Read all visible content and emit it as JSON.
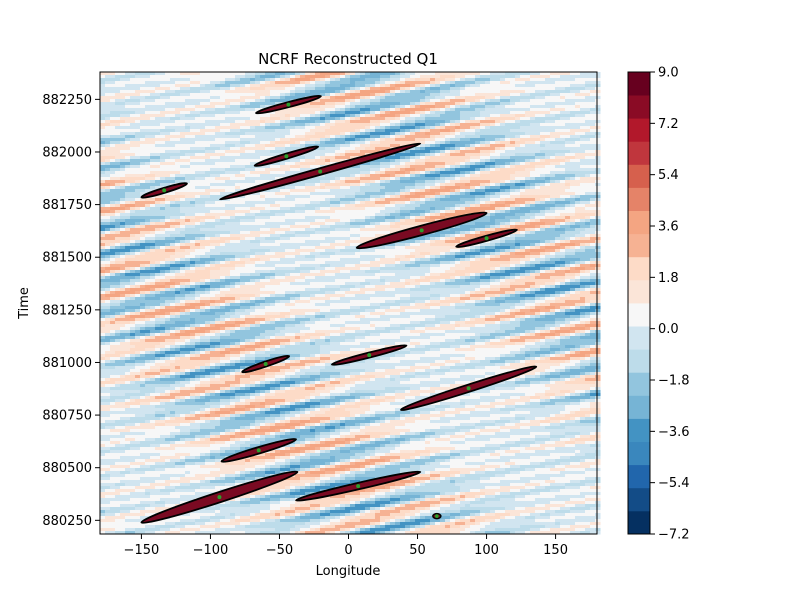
{
  "chart_data": {
    "type": "heatmap",
    "title": "NCRF Reconstructed Q1",
    "xlabel": "Longitude",
    "ylabel": "Time",
    "xlim": [
      -180,
      180
    ],
    "ylim": [
      880185,
      882380
    ],
    "x_ticks": [
      -150,
      -100,
      -50,
      0,
      50,
      100,
      150
    ],
    "x_tick_labels": [
      "−150",
      "−100",
      "−50",
      "0",
      "50",
      "100",
      "150"
    ],
    "y_ticks": [
      880250,
      880500,
      880750,
      881000,
      881250,
      881500,
      881750,
      882000,
      882250
    ],
    "y_tick_labels": [
      "880250",
      "880500",
      "880750",
      "881000",
      "881250",
      "881500",
      "881750",
      "882000",
      "882250"
    ],
    "colorbar": {
      "colormap": "RdBu_r",
      "min": -7.2,
      "max": 9.0,
      "levels": [
        -7.2,
        -6.3,
        -5.4,
        -4.5,
        -3.6,
        -2.7,
        -1.8,
        -0.9,
        0.0,
        0.9,
        1.8,
        2.7,
        3.6,
        4.5,
        5.4,
        6.3,
        7.2,
        8.1,
        9.0
      ],
      "tick_values": [
        -7.2,
        -5.4,
        -3.6,
        -1.8,
        0.0,
        1.8,
        3.6,
        5.4,
        7.2,
        9.0
      ],
      "tick_labels": [
        "−7.2",
        "−5.4",
        "−3.6",
        "−1.8",
        "0.0",
        "1.8",
        "3.6",
        "5.4",
        "7.2",
        "9.0"
      ],
      "colors": [
        "#053061",
        "#134c87",
        "#2166ac",
        "#3a87bd",
        "#4393c3",
        "#76b4d5",
        "#92c5de",
        "#bddcea",
        "#d1e5f0",
        "#f7f7f7",
        "#fbe5d8",
        "#fddbc7",
        "#f6b293",
        "#f4a582",
        "#e58368",
        "#d6604d",
        "#c0363d",
        "#b2182b",
        "#8a0b25",
        "#67001f"
      ]
    },
    "background_field": {
      "slope_time_per_degree": 1.55,
      "band_period_time": 135,
      "amplitude": 3.6
    },
    "tracked_events": [
      {
        "lon": [
          -150,
          -37
        ],
        "time": [
          880240,
          880480
        ],
        "width": 28
      },
      {
        "lon": [
          -38,
          52
        ],
        "time": [
          880345,
          880480
        ],
        "width": 18
      },
      {
        "lon": [
          -92,
          -38
        ],
        "time": [
          880530,
          880635
        ],
        "width": 18
      },
      {
        "lon": [
          38,
          136
        ],
        "time": [
          880775,
          880980
        ],
        "width": 20
      },
      {
        "lon": [
          -77,
          -43
        ],
        "time": [
          880955,
          881030
        ],
        "width": 14
      },
      {
        "lon": [
          -12,
          42
        ],
        "time": [
          880990,
          881080
        ],
        "width": 14
      },
      {
        "lon": [
          6,
          100
        ],
        "time": [
          881545,
          881710
        ],
        "width": 26
      },
      {
        "lon": [
          78,
          122
        ],
        "time": [
          881550,
          881630
        ],
        "width": 14
      },
      {
        "lon": [
          -93,
          52
        ],
        "time": [
          881775,
          882040
        ],
        "width": 18
      },
      {
        "lon": [
          -150,
          -117
        ],
        "time": [
          881785,
          881850
        ],
        "width": 14
      },
      {
        "lon": [
          -68,
          -22
        ],
        "time": [
          881935,
          882025
        ],
        "width": 14
      },
      {
        "lon": [
          -67,
          -20
        ],
        "time": [
          882185,
          882265
        ],
        "width": 14
      }
    ],
    "markers": [
      {
        "lon": 64,
        "time": 880270
      }
    ],
    "event_colors": {
      "fill": "#7a0a22",
      "outline": "#000000",
      "marker": "#2ca02c"
    }
  }
}
